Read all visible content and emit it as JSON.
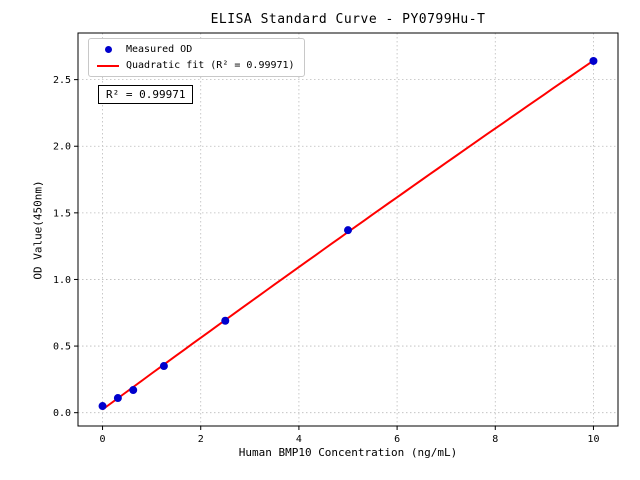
{
  "chart_data": {
    "type": "scatter",
    "title": "ELISA Standard Curve - PY0799Hu-T",
    "xlabel": "Human BMP10 Concentration (ng/mL)",
    "ylabel": "OD Value(450nm)",
    "annotation": "R² = 0.99971",
    "xlim": [
      -0.5,
      10.5
    ],
    "ylim": [
      -0.1,
      2.85
    ],
    "xticks": [
      0,
      2,
      4,
      6,
      8,
      10
    ],
    "yticks": [
      0.0,
      0.5,
      1.0,
      1.5,
      2.0,
      2.5
    ],
    "grid": true,
    "grid_style": "dotted",
    "legend_position": "upper left",
    "series": [
      {
        "name": "Measured OD",
        "type": "scatter",
        "color": "#0000cd",
        "x": [
          0,
          0.3125,
          0.625,
          1.25,
          2.5,
          5,
          10
        ],
        "y": [
          0.05,
          0.11,
          0.17,
          0.35,
          0.69,
          1.37,
          2.64
        ]
      },
      {
        "name": "Quadratic fit (R² = 0.99971)",
        "type": "line",
        "fit": "quadratic",
        "color": "#ff0000",
        "x_range": [
          0,
          10
        ]
      }
    ],
    "colors": {
      "grid": "#bbbbbb",
      "frame": "#000000",
      "background": "#ffffff"
    }
  }
}
